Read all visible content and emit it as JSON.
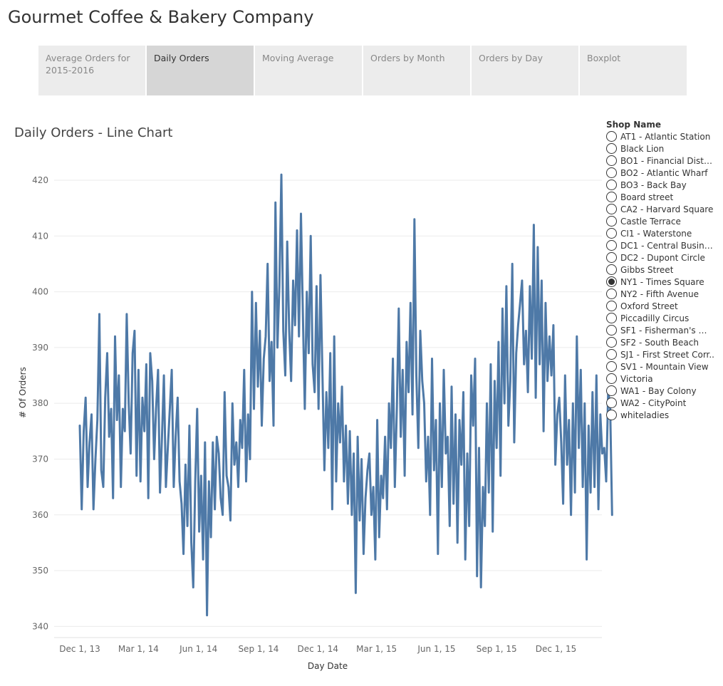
{
  "app": {
    "title": "Gourmet Coffee & Bakery Company"
  },
  "tabs": [
    {
      "label": "Average Orders for 2015-2016",
      "active": false
    },
    {
      "label": "Daily Orders",
      "active": true
    },
    {
      "label": "Moving Average",
      "active": false
    },
    {
      "label": "Orders by Month",
      "active": false
    },
    {
      "label": "Orders by Day",
      "active": false
    },
    {
      "label": "Boxplot",
      "active": false
    }
  ],
  "legend": {
    "title": "Shop Name",
    "selected": "NY1 - Times Square",
    "items": [
      "AT1 - Atlantic Station",
      "Black Lion",
      "BO1 - Financial Distri..",
      "BO2 - Atlantic Wharf",
      "BO3 - Back Bay",
      "Board street",
      "CA2 - Harvard Square",
      "Castle Terrace",
      "CI1 - Waterstone",
      "DC1 - Central Busines..",
      "DC2 - Dupont Circle",
      "Gibbs Street",
      "NY1 - Times Square",
      "NY2 - Fifth Avenue",
      "Oxford Street",
      "Piccadilly Circus",
      "SF1 - Fisherman's Wh..",
      "SF2 - South Beach",
      "SJ1 - First Street Corr..",
      "SV1 - Mountain View",
      "Victoria",
      "WA1 - Bay Colony",
      "WA2 - CityPoint",
      "whiteladies"
    ]
  },
  "colors": {
    "line": "#4e79a7",
    "grid": "#ebebeb",
    "axis_text": "#666666"
  },
  "chart_data": {
    "type": "line",
    "title": "Daily Orders - Line Chart",
    "xlabel": "Day Date",
    "ylabel": "# Of Orders",
    "x_start": "2013-12-01",
    "x_end": "2015-12-31",
    "x_ticks": [
      {
        "label": "Dec 1, 13",
        "day": 0
      },
      {
        "label": "Mar 1, 14",
        "day": 90
      },
      {
        "label": "Jun 1, 14",
        "day": 182
      },
      {
        "label": "Sep 1, 14",
        "day": 274
      },
      {
        "label": "Dec 1, 14",
        "day": 365
      },
      {
        "label": "Mar 1, 15",
        "day": 455
      },
      {
        "label": "Jun 1, 15",
        "day": 547
      },
      {
        "label": "Sep 1, 15",
        "day": 639
      },
      {
        "label": "Dec 1, 15",
        "day": 730
      }
    ],
    "ylim": [
      338,
      426
    ],
    "y_ticks": [
      340,
      350,
      360,
      370,
      380,
      390,
      400,
      410,
      420
    ],
    "grid": true,
    "series": [
      {
        "name": "NY1 - Times Square",
        "day_step": 3,
        "values": [
          376,
          361,
          375,
          381,
          365,
          373,
          378,
          361,
          370,
          377,
          396,
          368,
          365,
          381,
          389,
          374,
          379,
          363,
          392,
          377,
          385,
          365,
          379,
          375,
          396,
          380,
          371,
          389,
          393,
          367,
          386,
          366,
          381,
          375,
          387,
          363,
          389,
          384,
          370,
          379,
          386,
          364,
          374,
          385,
          365,
          372,
          379,
          386,
          365,
          374,
          381,
          366,
          362,
          353,
          369,
          358,
          376,
          355,
          347,
          366,
          379,
          357,
          367,
          352,
          373,
          342,
          366,
          356,
          373,
          361,
          374,
          371,
          363,
          360,
          382,
          367,
          365,
          359,
          380,
          369,
          373,
          365,
          377,
          372,
          386,
          366,
          378,
          370,
          400,
          379,
          398,
          383,
          393,
          376,
          388,
          392,
          405,
          384,
          391,
          376,
          416,
          390,
          401,
          421,
          393,
          385,
          409,
          393,
          384,
          402,
          394,
          411,
          392,
          414,
          396,
          379,
          400,
          389,
          410,
          387,
          382,
          401,
          379,
          403,
          385,
          368,
          382,
          372,
          389,
          361,
          392,
          366,
          380,
          373,
          383,
          366,
          376,
          362,
          375,
          360,
          371,
          346,
          374,
          359,
          370,
          353,
          363,
          368,
          371,
          360,
          365,
          352,
          377,
          356,
          367,
          363,
          374,
          361,
          380,
          372,
          388,
          365,
          379,
          397,
          374,
          386,
          367,
          391,
          382,
          398,
          378,
          413,
          385,
          372,
          393,
          384,
          380,
          366,
          374,
          360,
          388,
          368,
          377,
          353,
          380,
          365,
          386,
          371,
          374,
          358,
          383,
          362,
          378,
          355,
          377,
          369,
          382,
          352,
          371,
          358,
          385,
          376,
          388,
          349,
          372,
          347,
          365,
          358,
          380,
          364,
          387,
          357,
          384,
          372,
          391,
          367,
          397,
          380,
          401,
          376,
          384,
          405,
          373,
          389,
          394,
          398,
          402,
          387,
          393,
          382,
          401,
          388,
          412,
          381,
          408,
          387,
          402,
          375,
          398,
          384,
          392,
          385,
          394,
          369,
          378,
          381,
          373,
          362,
          385,
          369,
          377,
          360,
          380,
          364,
          392,
          372,
          386,
          365,
          380,
          352,
          376,
          364,
          382,
          365,
          385,
          361,
          378,
          371,
          372,
          366,
          382,
          380,
          360
        ]
      }
    ]
  }
}
